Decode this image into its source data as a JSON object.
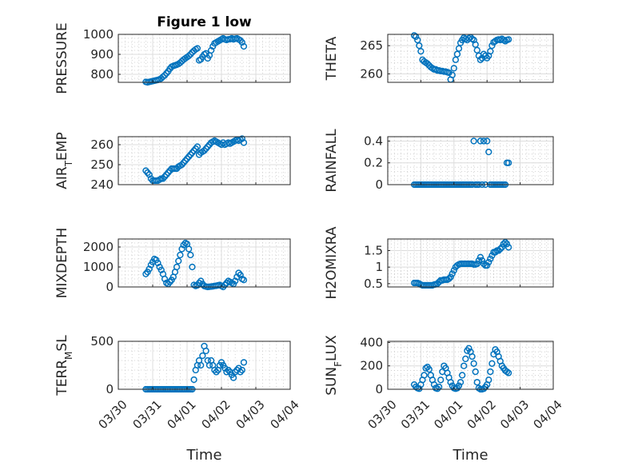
{
  "window": {
    "title": "Figure 1 low"
  },
  "marker_color": "#0072BD",
  "chart_data": [
    {
      "type": "scatter",
      "title": "Figure 1 low",
      "ylabel": "PRESSURE",
      "ylim": [
        760,
        1000
      ],
      "yticks": [
        800,
        900,
        1000
      ],
      "x": [
        0.8,
        0.85,
        0.9,
        0.95,
        1.0,
        1.05,
        1.1,
        1.15,
        1.2,
        1.25,
        1.3,
        1.35,
        1.4,
        1.45,
        1.5,
        1.55,
        1.6,
        1.65,
        1.7,
        1.75,
        1.8,
        1.85,
        1.9,
        1.95,
        2.0,
        2.05,
        2.1,
        2.15,
        2.2,
        2.25,
        2.3,
        2.35,
        2.4,
        2.45,
        2.5,
        2.55,
        2.6,
        2.65,
        2.7,
        2.75,
        2.8,
        2.85,
        2.9,
        2.95,
        3.0,
        3.05,
        3.1,
        3.15,
        3.2,
        3.25,
        3.3,
        3.35,
        3.4,
        3.45,
        3.5,
        3.55,
        3.6,
        3.65
      ],
      "y": [
        762,
        760,
        762,
        764,
        766,
        768,
        770,
        772,
        775,
        780,
        788,
        795,
        805,
        815,
        828,
        838,
        842,
        845,
        848,
        852,
        858,
        866,
        874,
        880,
        886,
        892,
        900,
        910,
        918,
        925,
        930,
        870,
        875,
        888,
        900,
        905,
        880,
        895,
        920,
        940,
        955,
        960,
        965,
        970,
        975,
        980,
        975,
        972,
        975,
        976,
        980,
        975,
        978,
        980,
        975,
        970,
        960,
        940
      ]
    },
    {
      "type": "scatter",
      "ylabel": "THETA",
      "ylim": [
        258.5,
        267
      ],
      "yticks": [
        260,
        265
      ],
      "x": [
        0.8,
        0.85,
        0.9,
        0.95,
        1.0,
        1.05,
        1.1,
        1.15,
        1.2,
        1.25,
        1.3,
        1.35,
        1.4,
        1.45,
        1.5,
        1.55,
        1.6,
        1.65,
        1.7,
        1.75,
        1.8,
        1.85,
        1.9,
        1.95,
        2.0,
        2.05,
        2.1,
        2.15,
        2.2,
        2.25,
        2.3,
        2.35,
        2.4,
        2.45,
        2.5,
        2.55,
        2.6,
        2.65,
        2.7,
        2.75,
        2.8,
        2.85,
        2.9,
        2.95,
        3.0,
        3.05,
        3.1,
        3.15,
        3.2,
        3.25,
        3.3,
        3.35,
        3.4,
        3.45,
        3.5,
        3.55,
        3.6,
        3.65
      ],
      "y": [
        266.8,
        266.6,
        266.0,
        265.0,
        264.0,
        262.5,
        262.2,
        262.0,
        261.8,
        261.5,
        261.2,
        261.0,
        260.8,
        260.8,
        260.6,
        260.6,
        260.5,
        260.5,
        260.4,
        260.4,
        260.3,
        260.2,
        259.0,
        259.8,
        261.0,
        262.5,
        263.5,
        264.5,
        265.5,
        266.0,
        266.4,
        266.2,
        266.0,
        266.3,
        266.5,
        266.2,
        266.0,
        265.2,
        264.2,
        263.2,
        262.5,
        262.8,
        263.5,
        263.2,
        262.8,
        263.2,
        264.0,
        265.0,
        265.6,
        265.8,
        266.0,
        266.1,
        266.0,
        266.2,
        266.0,
        265.8,
        266.0,
        266.1
      ]
    },
    {
      "type": "scatter",
      "ylabel": "AIR_TEMP",
      "ylim": [
        240,
        264
      ],
      "yticks": [
        240,
        250,
        260
      ],
      "x": [
        0.8,
        0.85,
        0.9,
        0.95,
        1.0,
        1.05,
        1.1,
        1.15,
        1.2,
        1.25,
        1.3,
        1.35,
        1.4,
        1.45,
        1.5,
        1.55,
        1.6,
        1.65,
        1.7,
        1.75,
        1.8,
        1.85,
        1.9,
        1.95,
        2.0,
        2.05,
        2.1,
        2.15,
        2.2,
        2.25,
        2.3,
        2.35,
        2.4,
        2.45,
        2.5,
        2.55,
        2.6,
        2.65,
        2.7,
        2.75,
        2.8,
        2.85,
        2.9,
        2.95,
        3.0,
        3.05,
        3.1,
        3.15,
        3.2,
        3.25,
        3.3,
        3.35,
        3.4,
        3.45,
        3.5,
        3.55,
        3.6,
        3.65
      ],
      "y": [
        247,
        246,
        245,
        243,
        242,
        242,
        242,
        242,
        242.5,
        243,
        243,
        244,
        245,
        246,
        247,
        248,
        248,
        248,
        248,
        249,
        249.5,
        250,
        251,
        252,
        253,
        254,
        255,
        256,
        257,
        258,
        259,
        255,
        256,
        256.5,
        257,
        258,
        259,
        260,
        261,
        261.5,
        262,
        261.5,
        261,
        260.5,
        260,
        261,
        260,
        260.5,
        261,
        260.5,
        261,
        261.5,
        262,
        262.5,
        262,
        262.5,
        263,
        261
      ]
    },
    {
      "type": "scatter",
      "ylabel": "RAINFALL",
      "ylim": [
        0,
        0.44
      ],
      "yticks": [
        0,
        0.2,
        0.4
      ],
      "x": [
        0.8,
        0.85,
        0.9,
        0.95,
        1.0,
        1.05,
        1.1,
        1.15,
        1.2,
        1.25,
        1.3,
        1.35,
        1.4,
        1.45,
        1.5,
        1.55,
        1.6,
        1.65,
        1.7,
        1.75,
        1.8,
        1.85,
        1.9,
        1.95,
        2.0,
        2.05,
        2.1,
        2.15,
        2.2,
        2.25,
        2.3,
        2.35,
        2.4,
        2.45,
        2.5,
        2.55,
        2.6,
        2.65,
        2.7,
        2.75,
        2.8,
        2.85,
        2.9,
        2.95,
        3.0,
        3.05,
        3.1,
        3.15,
        3.2,
        3.25,
        3.3,
        3.35,
        3.4,
        3.45,
        3.5,
        3.55,
        3.6,
        3.65
      ],
      "y": [
        0,
        0,
        0,
        0,
        0,
        0,
        0,
        0,
        0,
        0,
        0,
        0,
        0,
        0,
        0,
        0,
        0,
        0,
        0,
        0,
        0,
        0,
        0,
        0,
        0,
        0,
        0,
        0,
        0,
        0,
        0,
        0,
        0,
        0,
        0,
        0,
        0.4,
        0,
        0,
        0,
        0.4,
        0,
        0.4,
        0,
        0.4,
        0.3,
        0,
        0,
        0,
        0,
        0,
        0,
        0,
        0,
        0,
        0,
        0.2,
        0.2
      ]
    },
    {
      "type": "scatter",
      "ylabel": "MIXDEPTH",
      "ylim": [
        0,
        2400
      ],
      "yticks": [
        0,
        1000,
        2000
      ],
      "x": [
        0.8,
        0.85,
        0.9,
        0.95,
        1.0,
        1.05,
        1.1,
        1.15,
        1.2,
        1.25,
        1.3,
        1.35,
        1.4,
        1.45,
        1.5,
        1.55,
        1.6,
        1.65,
        1.7,
        1.75,
        1.8,
        1.85,
        1.9,
        1.95,
        2.0,
        2.05,
        2.1,
        2.15,
        2.2,
        2.25,
        2.3,
        2.35,
        2.4,
        2.45,
        2.5,
        2.55,
        2.6,
        2.65,
        2.7,
        2.75,
        2.8,
        2.85,
        2.9,
        2.95,
        3.0,
        3.05,
        3.1,
        3.15,
        3.2,
        3.25,
        3.3,
        3.35,
        3.4,
        3.45,
        3.5,
        3.55,
        3.6,
        3.65
      ],
      "y": [
        650,
        750,
        900,
        1100,
        1250,
        1400,
        1350,
        1200,
        1000,
        850,
        650,
        400,
        200,
        150,
        250,
        350,
        500,
        750,
        1000,
        1300,
        1600,
        1900,
        2100,
        2200,
        2150,
        1900,
        1600,
        1000,
        100,
        50,
        80,
        200,
        300,
        150,
        50,
        20,
        0,
        10,
        20,
        30,
        50,
        60,
        80,
        100,
        50,
        0,
        100,
        200,
        300,
        250,
        200,
        150,
        300,
        500,
        700,
        600,
        400,
        350
      ]
    },
    {
      "type": "scatter",
      "ylabel": "H2OMIXRA",
      "ylim": [
        0.4,
        1.85
      ],
      "yticks": [
        0.5,
        1,
        1.5
      ],
      "x": [
        0.8,
        0.85,
        0.9,
        0.95,
        1.0,
        1.05,
        1.1,
        1.15,
        1.2,
        1.25,
        1.3,
        1.35,
        1.4,
        1.45,
        1.5,
        1.55,
        1.6,
        1.65,
        1.7,
        1.75,
        1.8,
        1.85,
        1.9,
        1.95,
        2.0,
        2.05,
        2.1,
        2.15,
        2.2,
        2.25,
        2.3,
        2.35,
        2.4,
        2.45,
        2.5,
        2.55,
        2.6,
        2.65,
        2.7,
        2.75,
        2.8,
        2.85,
        2.9,
        2.95,
        3.0,
        3.05,
        3.1,
        3.15,
        3.2,
        3.25,
        3.3,
        3.35,
        3.4,
        3.45,
        3.5,
        3.55,
        3.6,
        3.65
      ],
      "y": [
        0.52,
        0.52,
        0.52,
        0.5,
        0.47,
        0.45,
        0.45,
        0.45,
        0.45,
        0.45,
        0.45,
        0.45,
        0.47,
        0.48,
        0.5,
        0.55,
        0.6,
        0.6,
        0.62,
        0.62,
        0.62,
        0.65,
        0.7,
        0.8,
        0.9,
        1.0,
        1.05,
        1.08,
        1.1,
        1.1,
        1.1,
        1.1,
        1.1,
        1.1,
        1.1,
        1.1,
        1.08,
        1.08,
        1.1,
        1.2,
        1.3,
        1.2,
        1.1,
        1.05,
        1.05,
        1.15,
        1.25,
        1.35,
        1.45,
        1.45,
        1.5,
        1.5,
        1.55,
        1.6,
        1.7,
        1.75,
        1.7,
        1.6
      ]
    },
    {
      "type": "scatter",
      "ylabel": "TERR_MSL",
      "ylim": [
        0,
        500
      ],
      "yticks": [
        0,
        500
      ],
      "x": [
        0.8,
        0.85,
        0.9,
        0.95,
        1.0,
        1.05,
        1.1,
        1.15,
        1.2,
        1.25,
        1.3,
        1.35,
        1.4,
        1.45,
        1.5,
        1.55,
        1.6,
        1.65,
        1.7,
        1.75,
        1.8,
        1.85,
        1.9,
        1.95,
        2.0,
        2.05,
        2.1,
        2.15,
        2.2,
        2.25,
        2.3,
        2.35,
        2.4,
        2.45,
        2.5,
        2.55,
        2.6,
        2.65,
        2.7,
        2.75,
        2.8,
        2.85,
        2.9,
        2.95,
        3.0,
        3.05,
        3.1,
        3.15,
        3.2,
        3.25,
        3.3,
        3.35,
        3.4,
        3.45,
        3.5,
        3.55,
        3.6,
        3.65
      ],
      "y": [
        0,
        0,
        0,
        0,
        0,
        0,
        0,
        0,
        0,
        0,
        0,
        0,
        0,
        0,
        0,
        0,
        0,
        0,
        0,
        0,
        0,
        0,
        0,
        0,
        0,
        0,
        0,
        0,
        100,
        200,
        250,
        300,
        250,
        350,
        450,
        400,
        300,
        250,
        300,
        250,
        200,
        180,
        200,
        250,
        280,
        250,
        220,
        180,
        200,
        180,
        150,
        120,
        180,
        200,
        220,
        180,
        200,
        280
      ]
    },
    {
      "type": "scatter",
      "ylabel": "SUN_FLUX",
      "ylim": [
        0,
        410
      ],
      "yticks": [
        0,
        200,
        400
      ],
      "x": [
        0.8,
        0.85,
        0.9,
        0.95,
        1.0,
        1.05,
        1.1,
        1.15,
        1.2,
        1.25,
        1.3,
        1.35,
        1.4,
        1.45,
        1.5,
        1.55,
        1.6,
        1.65,
        1.7,
        1.75,
        1.8,
        1.85,
        1.9,
        1.95,
        2.0,
        2.05,
        2.1,
        2.15,
        2.2,
        2.25,
        2.3,
        2.35,
        2.4,
        2.45,
        2.5,
        2.55,
        2.6,
        2.65,
        2.7,
        2.75,
        2.8,
        2.85,
        2.9,
        2.95,
        3.0,
        3.05,
        3.1,
        3.15,
        3.2,
        3.25,
        3.3,
        3.35,
        3.4,
        3.45,
        3.5,
        3.55,
        3.6,
        3.65
      ],
      "y": [
        40,
        20,
        10,
        5,
        40,
        80,
        120,
        180,
        190,
        170,
        120,
        80,
        40,
        10,
        5,
        20,
        80,
        150,
        200,
        180,
        140,
        100,
        60,
        30,
        10,
        5,
        10,
        30,
        60,
        120,
        200,
        260,
        330,
        350,
        320,
        280,
        220,
        150,
        60,
        10,
        0,
        0,
        5,
        20,
        40,
        80,
        150,
        220,
        300,
        340,
        320,
        280,
        240,
        200,
        180,
        160,
        150,
        140
      ]
    }
  ],
  "x_axis": {
    "label": "Time",
    "range": [
      0,
      5
    ],
    "ticks": [
      0,
      1,
      2,
      3,
      4,
      5
    ],
    "tick_labels": [
      "03/30",
      "03/31",
      "04/01",
      "04/02",
      "04/03",
      "04/04"
    ]
  }
}
